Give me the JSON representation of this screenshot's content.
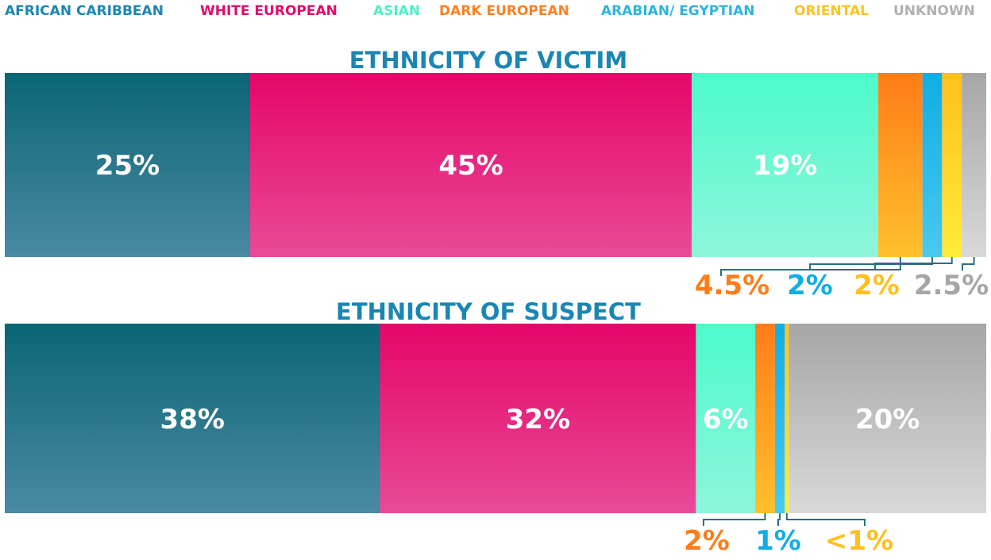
{
  "chart_data": [
    {
      "type": "bar",
      "orientation": "horizontal-stacked-100",
      "title": "ETHNICITY OF VICTIM",
      "legend": [
        "AFRICAN CARIBBEAN",
        "WHITE EUROPEAN",
        "ASIAN",
        "DARK EUROPEAN",
        "ARABIAN/ EGYPTIAN",
        "ORIENTAL",
        "UNKNOWN"
      ],
      "legend_placement": "top",
      "values": [
        25,
        45,
        19,
        4.5,
        2,
        2,
        2.5
      ],
      "labels": [
        "25%",
        "45%",
        "19%",
        "4.5%",
        "2%",
        "2%",
        "2.5%"
      ]
    },
    {
      "type": "bar",
      "orientation": "horizontal-stacked-100",
      "title": "ETHNICITY OF SUSPECT",
      "legend": [
        "AFRICAN CARIBBEAN",
        "WHITE EUROPEAN",
        "ASIAN",
        "DARK EUROPEAN",
        "ARABIAN/ EGYPTIAN",
        "ORIENTAL",
        "UNKNOWN"
      ],
      "values": [
        38,
        32,
        6,
        2,
        1,
        0.4,
        20
      ],
      "labels": [
        "38%",
        "32%",
        "6%",
        "2%",
        "1%",
        "<1%",
        "20%"
      ]
    }
  ],
  "colors": {
    "AFRICAN CARIBBEAN": [
      "#0a6574",
      "#4a8aa3"
    ],
    "WHITE EUROPEAN": [
      "#e6066a",
      "#e84a98"
    ],
    "ASIAN": [
      "#4cfbca",
      "#8ef5db"
    ],
    "DARK EUROPEAN": [
      "#ff7c18",
      "#ffc02c"
    ],
    "ARABIAN/ EGYPTIAN": [
      "#10ade4",
      "#48c9ef"
    ],
    "ORIENTAL": [
      "#ffbf1e",
      "#ffeb3c"
    ],
    "UNKNOWN": [
      "#a6a6a6",
      "#d9d9d9"
    ]
  },
  "legend_text_colors": [
    "#1a86b3",
    "#e6066a",
    "#4ef0c6",
    "#ff8020",
    "#2ab5e0",
    "#ffc21f",
    "#b0b0b0"
  ],
  "title_color": "#1a86b3"
}
